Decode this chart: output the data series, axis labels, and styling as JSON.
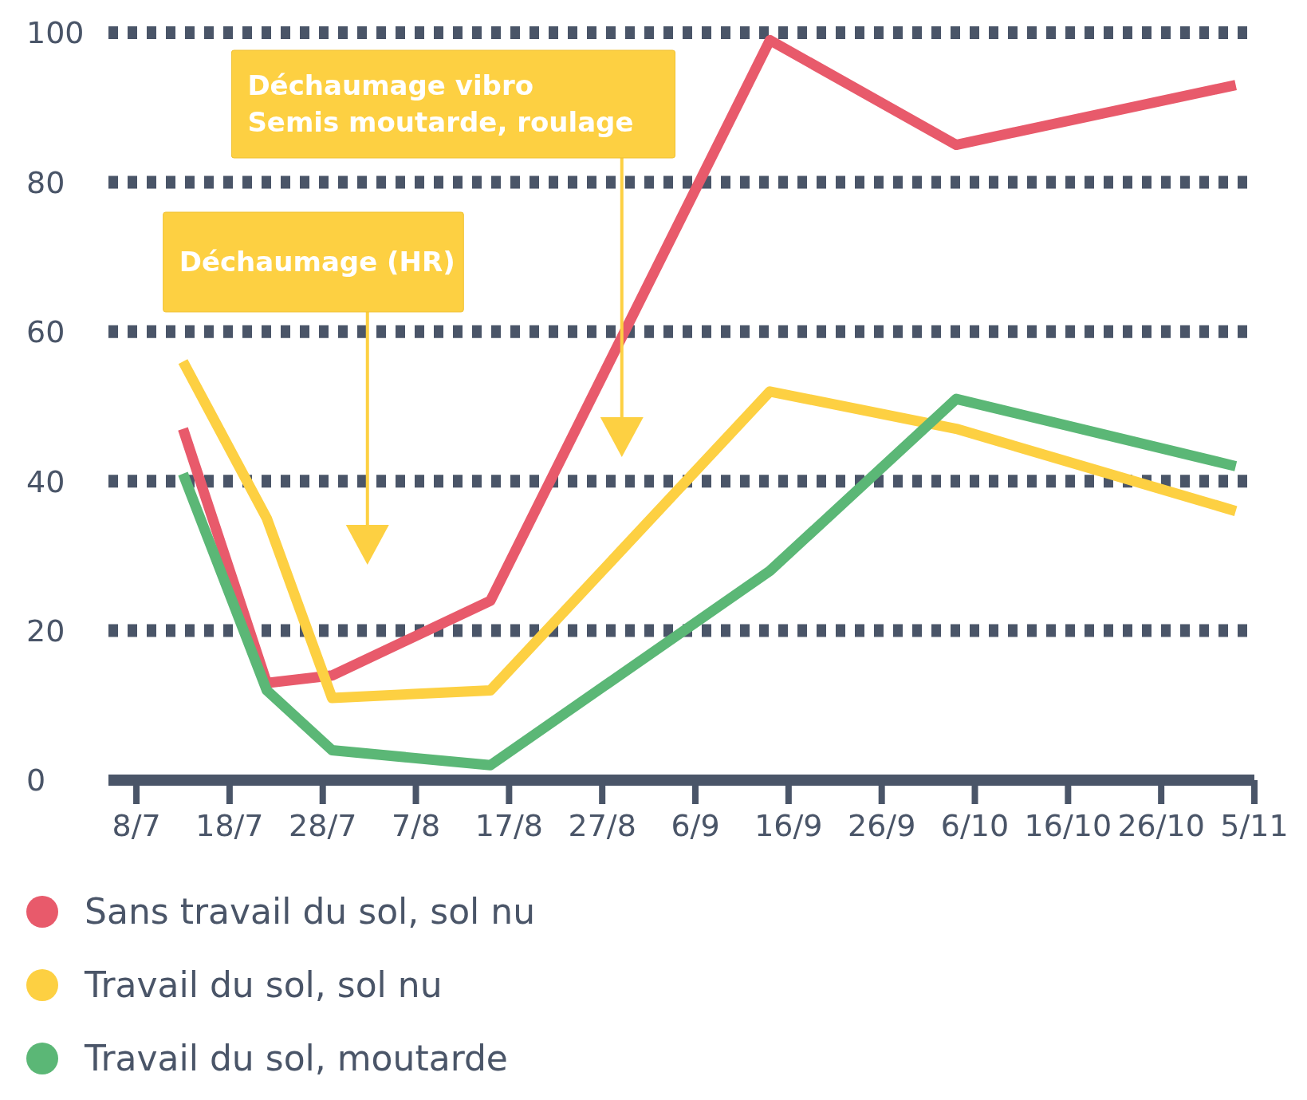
{
  "chart_data": {
    "type": "line",
    "x": [
      "--07-13",
      "--07-22",
      "--07-29",
      "--08-15",
      "--09-14",
      "--10-04",
      "--11-03"
    ],
    "xlim": [
      "--07-05",
      "--11-05"
    ],
    "xticks": [
      {
        "value": "--07-08",
        "label": "8/7"
      },
      {
        "value": "--07-18",
        "label": "18/7"
      },
      {
        "value": "--07-28",
        "label": "28/7"
      },
      {
        "value": "--08-07",
        "label": "7/8"
      },
      {
        "value": "--08-17",
        "label": "17/8"
      },
      {
        "value": "--08-27",
        "label": "27/8"
      },
      {
        "value": "--09-06",
        "label": "6/9"
      },
      {
        "value": "--09-16",
        "label": "16/9"
      },
      {
        "value": "--09-26",
        "label": "26/9"
      },
      {
        "value": "--10-06",
        "label": "6/10"
      },
      {
        "value": "--10-16",
        "label": "16/10"
      },
      {
        "value": "--10-26",
        "label": "26/10"
      },
      {
        "value": "--11-05",
        "label": "5/11"
      }
    ],
    "ylim": [
      0,
      100
    ],
    "yticks": [
      0,
      20,
      40,
      60,
      80,
      100
    ],
    "grid": "y",
    "legend": "bottom",
    "marker": "none",
    "line_style": "solid",
    "series": [
      {
        "name": "Sans travail du sol, sol nu",
        "color": "#e85a6b",
        "values": [
          47,
          13,
          14,
          24,
          99,
          85,
          93
        ]
      },
      {
        "name": "Travail du sol, sol nu",
        "color": "#fdd042",
        "values": [
          56,
          35,
          11,
          12,
          52,
          47,
          36
        ]
      },
      {
        "name": "Travail du sol, moutarde",
        "color": "#5bb776",
        "values": [
          41,
          12,
          4,
          2,
          28,
          51,
          42
        ]
      }
    ],
    "annotations": [
      "Déchaumage (HR)",
      "Déchaumage vibro\nSemis moutarde, roulage"
    ]
  }
}
